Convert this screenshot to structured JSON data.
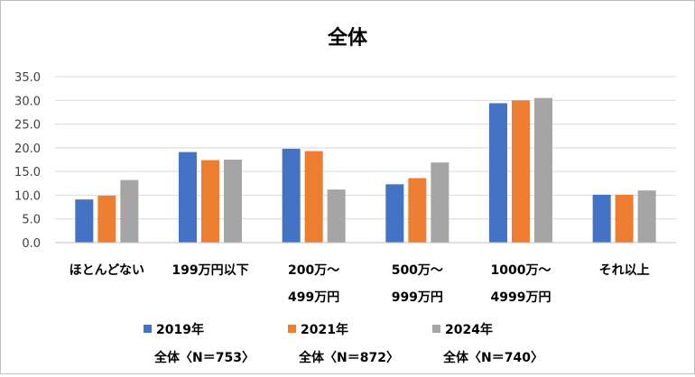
{
  "chart_data": {
    "type": "bar",
    "title": "全体",
    "categories": [
      [
        "ほとんどない"
      ],
      [
        "199万円以下"
      ],
      [
        "200万～",
        "499万円"
      ],
      [
        "500万～",
        "999万円"
      ],
      [
        "1000万～",
        "4999万円"
      ],
      [
        "それ以上"
      ]
    ],
    "series": [
      {
        "name": "2019年",
        "note": "全体〈N＝753〉",
        "color": "#4472c4",
        "values": [
          9.1,
          19.1,
          19.8,
          12.3,
          29.4,
          10.1
        ]
      },
      {
        "name": "2021年",
        "note": "全体〈N＝872〉",
        "color": "#ed7d31",
        "values": [
          9.9,
          17.4,
          19.3,
          13.6,
          30.0,
          10.1
        ]
      },
      {
        "name": "2024年",
        "note": "全体〈N＝740〉",
        "color": "#a5a5a5",
        "values": [
          13.2,
          17.5,
          11.2,
          16.9,
          30.5,
          11.0
        ]
      }
    ],
    "yticks": [
      "0.0",
      "5.0",
      "10.0",
      "15.0",
      "20.0",
      "25.0",
      "30.0",
      "35.0"
    ],
    "ylim": [
      0,
      35
    ],
    "grid": true,
    "legend_position": "bottom"
  }
}
